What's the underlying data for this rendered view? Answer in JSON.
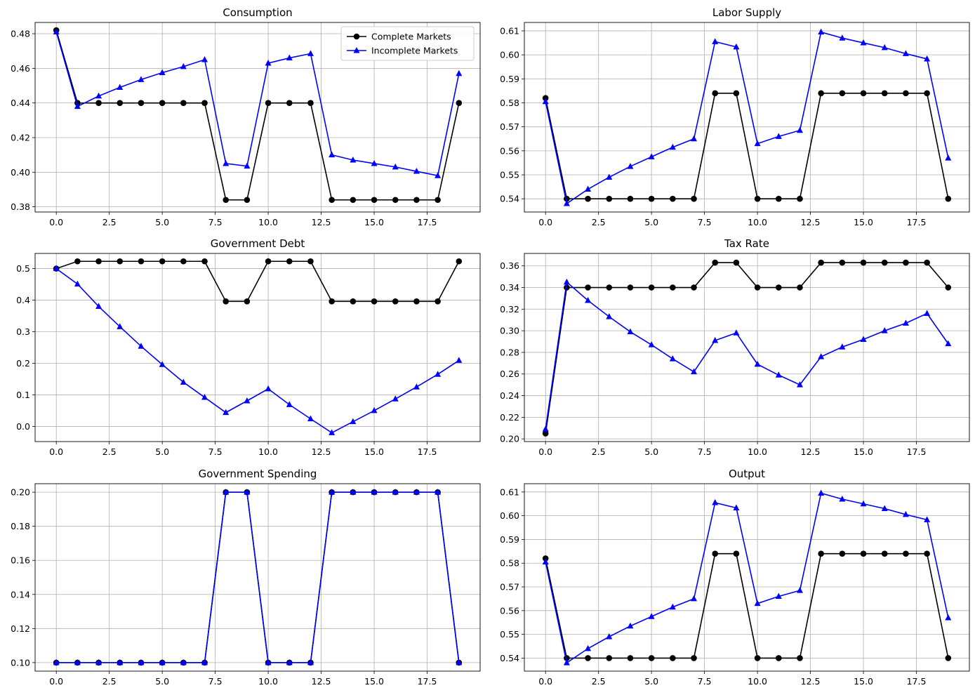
{
  "figure": {
    "legend": {
      "placement": "upper-right of first panel",
      "entries": [
        "Complete Markets",
        "Incomplete Markets"
      ]
    },
    "colors": {
      "complete": "#000000",
      "incomplete": "#0000ff",
      "grid": "#b0b0b0"
    },
    "markers": {
      "complete": "circle",
      "incomplete": "triangle-up"
    }
  },
  "chart_data": [
    {
      "type": "line",
      "title": "Consumption",
      "x": [
        0,
        1,
        2,
        3,
        4,
        5,
        6,
        7,
        8,
        9,
        10,
        11,
        12,
        13,
        14,
        15,
        16,
        17,
        18,
        19
      ],
      "xlim": [
        -1,
        20
      ],
      "xticks": [
        0,
        2.5,
        5,
        7.5,
        10,
        12.5,
        15,
        17.5
      ],
      "xticklabels": [
        "0.0",
        "2.5",
        "5.0",
        "7.5",
        "10.0",
        "12.5",
        "15.0",
        "17.5"
      ],
      "ylim": [
        0.377,
        0.4865
      ],
      "yticks": [
        0.38,
        0.4,
        0.42,
        0.44,
        0.46,
        0.48
      ],
      "yticklabels": [
        "0.38",
        "0.40",
        "0.42",
        "0.44",
        "0.46",
        "0.48"
      ],
      "grid": true,
      "show_legend": true,
      "series": [
        {
          "name": "Complete Markets",
          "values": [
            0.482,
            0.44,
            0.44,
            0.44,
            0.44,
            0.44,
            0.44,
            0.44,
            0.384,
            0.384,
            0.44,
            0.44,
            0.44,
            0.384,
            0.384,
            0.384,
            0.384,
            0.384,
            0.384,
            0.44
          ]
        },
        {
          "name": "Incomplete Markets",
          "values": [
            0.481,
            0.438,
            0.444,
            0.449,
            0.4535,
            0.4575,
            0.461,
            0.465,
            0.405,
            0.4035,
            0.463,
            0.466,
            0.4685,
            0.41,
            0.407,
            0.405,
            0.403,
            0.4005,
            0.398,
            0.457
          ]
        }
      ]
    },
    {
      "type": "line",
      "title": "Labor Supply",
      "x": [
        0,
        1,
        2,
        3,
        4,
        5,
        6,
        7,
        8,
        9,
        10,
        11,
        12,
        13,
        14,
        15,
        16,
        17,
        18,
        19
      ],
      "xlim": [
        -1,
        20
      ],
      "xticks": [
        0,
        2.5,
        5,
        7.5,
        10,
        12.5,
        15,
        17.5
      ],
      "xticklabels": [
        "0.0",
        "2.5",
        "5.0",
        "7.5",
        "10.0",
        "12.5",
        "15.0",
        "17.5"
      ],
      "ylim": [
        0.5345,
        0.6135
      ],
      "yticks": [
        0.54,
        0.55,
        0.56,
        0.57,
        0.58,
        0.59,
        0.6,
        0.61
      ],
      "yticklabels": [
        "0.54",
        "0.55",
        "0.56",
        "0.57",
        "0.58",
        "0.59",
        "0.60",
        "0.61"
      ],
      "grid": true,
      "show_legend": false,
      "series": [
        {
          "name": "Complete Markets",
          "values": [
            0.582,
            0.54,
            0.54,
            0.54,
            0.54,
            0.54,
            0.54,
            0.54,
            0.584,
            0.584,
            0.54,
            0.54,
            0.54,
            0.584,
            0.584,
            0.584,
            0.584,
            0.584,
            0.584,
            0.54
          ]
        },
        {
          "name": "Incomplete Markets",
          "values": [
            0.5805,
            0.538,
            0.544,
            0.549,
            0.5535,
            0.5575,
            0.5615,
            0.565,
            0.6055,
            0.6033,
            0.563,
            0.566,
            0.5685,
            0.6095,
            0.607,
            0.605,
            0.603,
            0.6005,
            0.5983,
            0.557
          ]
        }
      ]
    },
    {
      "type": "line",
      "title": "Government Debt",
      "x": [
        0,
        1,
        2,
        3,
        4,
        5,
        6,
        7,
        8,
        9,
        10,
        11,
        12,
        13,
        14,
        15,
        16,
        17,
        18,
        19
      ],
      "xlim": [
        -1,
        20
      ],
      "xticks": [
        0,
        2.5,
        5,
        7.5,
        10,
        12.5,
        15,
        17.5
      ],
      "xticklabels": [
        "0.0",
        "2.5",
        "5.0",
        "7.5",
        "10.0",
        "12.5",
        "15.0",
        "17.5"
      ],
      "ylim": [
        -0.048,
        0.548
      ],
      "yticks": [
        0.0,
        0.1,
        0.2,
        0.3,
        0.4,
        0.5
      ],
      "yticklabels": [
        "0.0",
        "0.1",
        "0.2",
        "0.3",
        "0.4",
        "0.5"
      ],
      "grid": true,
      "show_legend": false,
      "series": [
        {
          "name": "Complete Markets",
          "values": [
            0.5,
            0.523,
            0.523,
            0.523,
            0.523,
            0.523,
            0.523,
            0.523,
            0.396,
            0.396,
            0.523,
            0.523,
            0.523,
            0.396,
            0.396,
            0.396,
            0.396,
            0.396,
            0.396,
            0.523
          ]
        },
        {
          "name": "Incomplete Markets",
          "values": [
            0.5,
            0.451,
            0.38,
            0.316,
            0.254,
            0.196,
            0.14,
            0.092,
            0.044,
            0.081,
            0.119,
            0.069,
            0.024,
            -0.02,
            0.015,
            0.05,
            0.087,
            0.125,
            0.165,
            0.209
          ]
        }
      ]
    },
    {
      "type": "line",
      "title": "Tax Rate",
      "x": [
        0,
        1,
        2,
        3,
        4,
        5,
        6,
        7,
        8,
        9,
        10,
        11,
        12,
        13,
        14,
        15,
        16,
        17,
        18,
        19
      ],
      "xlim": [
        -1,
        20
      ],
      "xticks": [
        0,
        2.5,
        5,
        7.5,
        10,
        12.5,
        15,
        17.5
      ],
      "xticklabels": [
        "0.0",
        "2.5",
        "5.0",
        "7.5",
        "10.0",
        "12.5",
        "15.0",
        "17.5"
      ],
      "ylim": [
        0.1975,
        0.3715
      ],
      "yticks": [
        0.2,
        0.22,
        0.24,
        0.26,
        0.28,
        0.3,
        0.32,
        0.34,
        0.36
      ],
      "yticklabels": [
        "0.20",
        "0.22",
        "0.24",
        "0.26",
        "0.28",
        "0.30",
        "0.32",
        "0.34",
        "0.36"
      ],
      "grid": true,
      "show_legend": false,
      "series": [
        {
          "name": "Complete Markets",
          "values": [
            0.205,
            0.34,
            0.34,
            0.34,
            0.34,
            0.34,
            0.34,
            0.34,
            0.363,
            0.363,
            0.34,
            0.34,
            0.34,
            0.363,
            0.363,
            0.363,
            0.363,
            0.363,
            0.363,
            0.34
          ]
        },
        {
          "name": "Incomplete Markets",
          "values": [
            0.209,
            0.345,
            0.328,
            0.313,
            0.299,
            0.287,
            0.274,
            0.262,
            0.291,
            0.298,
            0.269,
            0.259,
            0.25,
            0.276,
            0.285,
            0.292,
            0.3,
            0.307,
            0.316,
            0.288
          ]
        }
      ]
    },
    {
      "type": "line",
      "title": "Government Spending",
      "x": [
        0,
        1,
        2,
        3,
        4,
        5,
        6,
        7,
        8,
        9,
        10,
        11,
        12,
        13,
        14,
        15,
        16,
        17,
        18,
        19
      ],
      "xlim": [
        -1,
        20
      ],
      "xticks": [
        0,
        2.5,
        5,
        7.5,
        10,
        12.5,
        15,
        17.5
      ],
      "xticklabels": [
        "0.0",
        "2.5",
        "5.0",
        "7.5",
        "10.0",
        "12.5",
        "15.0",
        "17.5"
      ],
      "ylim": [
        0.095,
        0.205
      ],
      "yticks": [
        0.1,
        0.12,
        0.14,
        0.16,
        0.18,
        0.2
      ],
      "yticklabels": [
        "0.10",
        "0.12",
        "0.14",
        "0.16",
        "0.18",
        "0.20"
      ],
      "grid": true,
      "show_legend": false,
      "series": [
        {
          "name": "Complete Markets",
          "values": [
            0.1,
            0.1,
            0.1,
            0.1,
            0.1,
            0.1,
            0.1,
            0.1,
            0.2,
            0.2,
            0.1,
            0.1,
            0.1,
            0.2,
            0.2,
            0.2,
            0.2,
            0.2,
            0.2,
            0.1
          ]
        },
        {
          "name": "Incomplete Markets",
          "values": [
            0.1,
            0.1,
            0.1,
            0.1,
            0.1,
            0.1,
            0.1,
            0.1,
            0.2,
            0.2,
            0.1,
            0.1,
            0.1,
            0.2,
            0.2,
            0.2,
            0.2,
            0.2,
            0.2,
            0.1
          ]
        }
      ]
    },
    {
      "type": "line",
      "title": "Output",
      "x": [
        0,
        1,
        2,
        3,
        4,
        5,
        6,
        7,
        8,
        9,
        10,
        11,
        12,
        13,
        14,
        15,
        16,
        17,
        18,
        19
      ],
      "xlim": [
        -1,
        20
      ],
      "xticks": [
        0,
        2.5,
        5,
        7.5,
        10,
        12.5,
        15,
        17.5
      ],
      "xticklabels": [
        "0.0",
        "2.5",
        "5.0",
        "7.5",
        "10.0",
        "12.5",
        "15.0",
        "17.5"
      ],
      "ylim": [
        0.5345,
        0.6135
      ],
      "yticks": [
        0.54,
        0.55,
        0.56,
        0.57,
        0.58,
        0.59,
        0.6,
        0.61
      ],
      "yticklabels": [
        "0.54",
        "0.55",
        "0.56",
        "0.57",
        "0.58",
        "0.59",
        "0.60",
        "0.61"
      ],
      "grid": true,
      "show_legend": false,
      "series": [
        {
          "name": "Complete Markets",
          "values": [
            0.582,
            0.54,
            0.54,
            0.54,
            0.54,
            0.54,
            0.54,
            0.54,
            0.584,
            0.584,
            0.54,
            0.54,
            0.54,
            0.584,
            0.584,
            0.584,
            0.584,
            0.584,
            0.584,
            0.54
          ]
        },
        {
          "name": "Incomplete Markets",
          "values": [
            0.5805,
            0.538,
            0.544,
            0.549,
            0.5535,
            0.5575,
            0.5615,
            0.565,
            0.6055,
            0.6033,
            0.563,
            0.566,
            0.5685,
            0.6095,
            0.607,
            0.605,
            0.603,
            0.6005,
            0.5983,
            0.557
          ]
        }
      ]
    }
  ]
}
